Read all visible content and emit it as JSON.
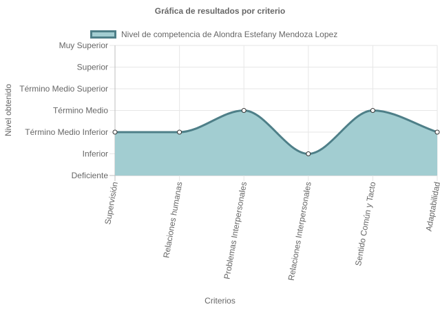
{
  "chart_data": {
    "type": "area",
    "title": "Gráfica de resultados por criterio",
    "xlabel": "Criterios",
    "ylabel": "Nivel obtenido",
    "levels": [
      "Deficiente",
      "Inferior",
      "Término Medio Inferior",
      "Término Medio",
      "Término Medio Superior",
      "Superior",
      "Muy Superior"
    ],
    "categories": [
      "Supervisión",
      "Relaciones humanas",
      "Problemas Interpersonales",
      "Relaciones Interpersonales",
      "Sentido Común y Tacto",
      "Adaptabilidad"
    ],
    "series": [
      {
        "name": "Nivel de competencia de Alondra Estefany Mendoza Lopez",
        "values": [
          "Término Medio Inferior",
          "Término Medio Inferior",
          "Término Medio",
          "Inferior",
          "Término Medio",
          "Término Medio Inferior"
        ]
      }
    ],
    "grid": true,
    "legend": "top",
    "colors": {
      "fill": "#a2cdd1",
      "line": "#4e7f88",
      "point_fill": "#ffffff",
      "grid": "#e6e6e6"
    }
  }
}
